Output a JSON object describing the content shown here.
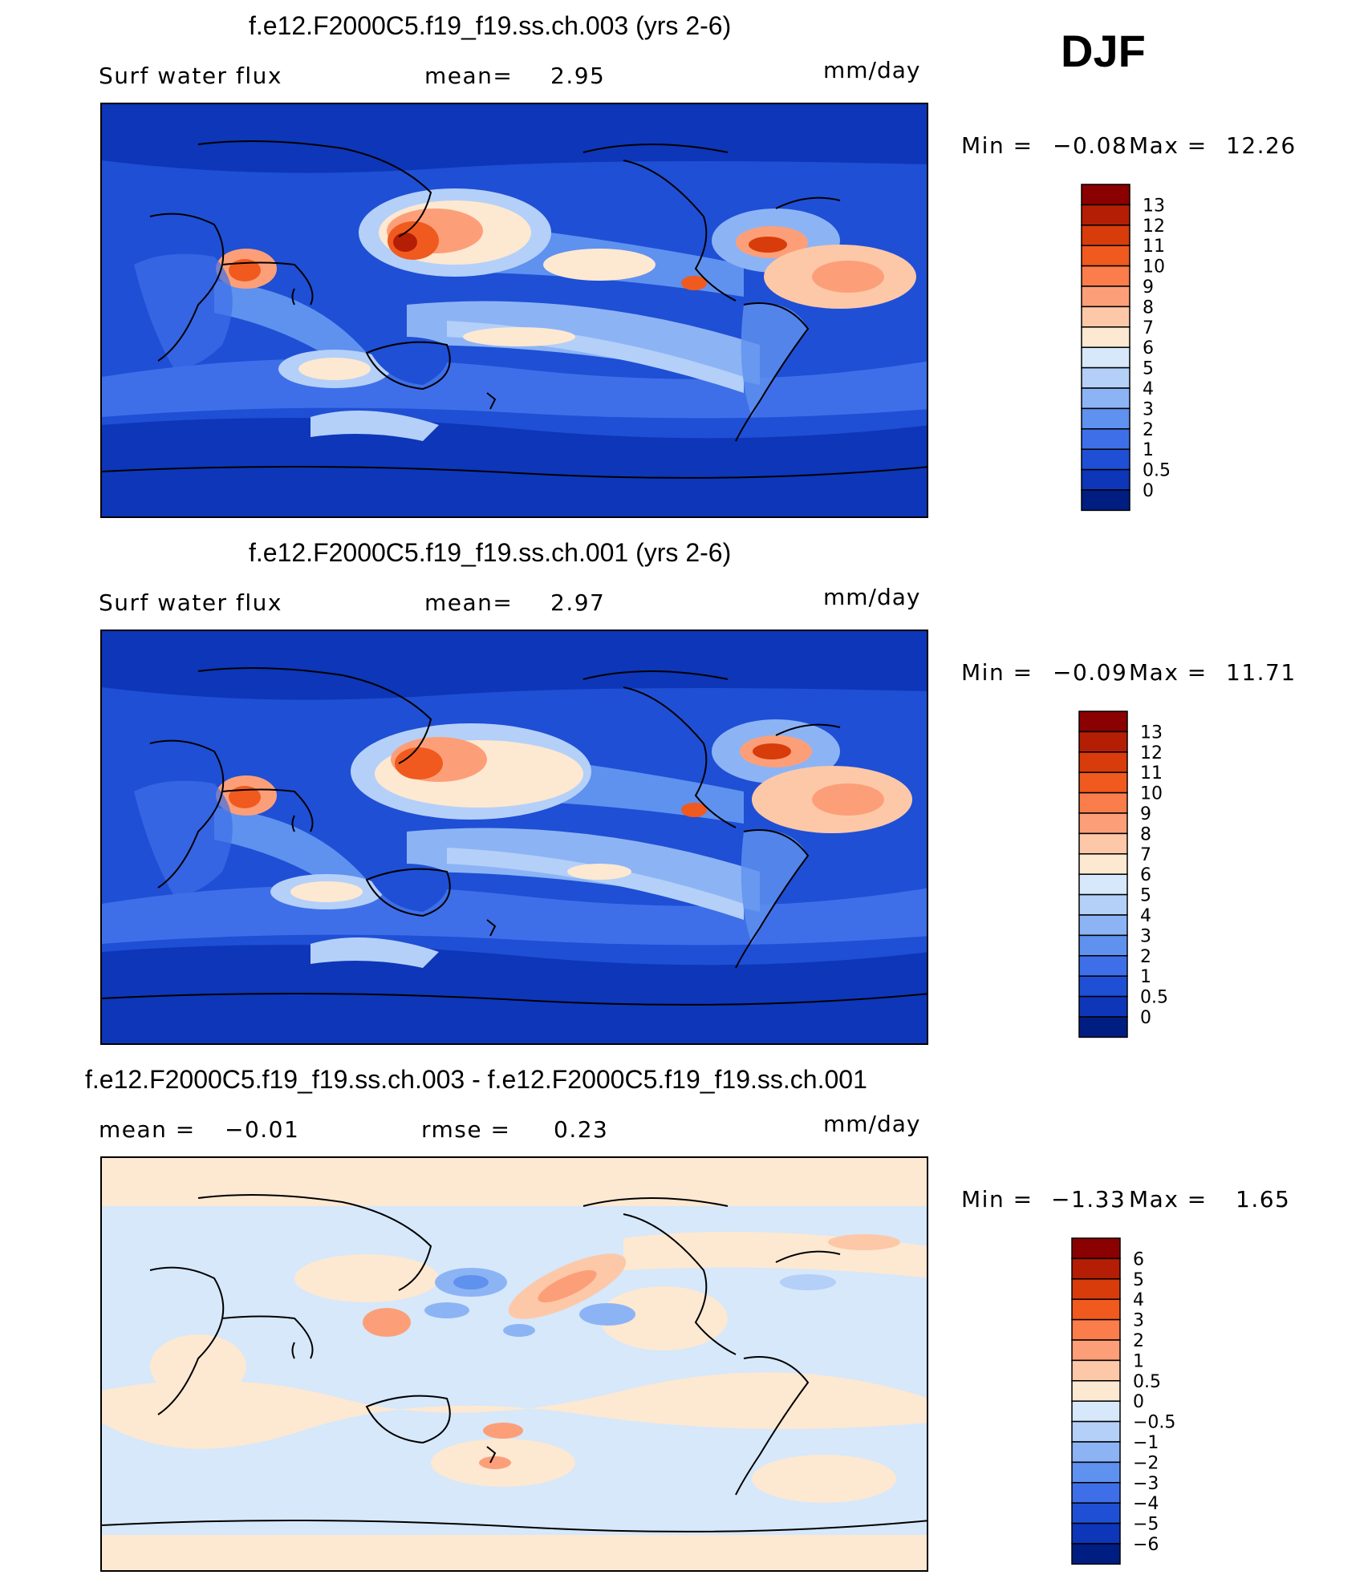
{
  "season": "DJF",
  "units": "mm/day",
  "panels": [
    {
      "title": "f.e12.F2000C5.f19_f19.ss.ch.003 (yrs 2-6)",
      "left_label": "Surf water flux",
      "stat_label": "mean=",
      "stat_value": "2.95",
      "min_label": "Min =",
      "min_value": "−0.08",
      "max_label": "Max =",
      "max_value": "12.26"
    },
    {
      "title": "f.e12.F2000C5.f19_f19.ss.ch.001 (yrs 2-6)",
      "left_label": "Surf water flux",
      "stat_label": "mean=",
      "stat_value": "2.97",
      "min_label": "Min =",
      "min_value": "−0.09",
      "max_label": "Max =",
      "max_value": "11.71"
    },
    {
      "title": "f.e12.F2000C5.f19_f19.ss.ch.003 - f.e12.F2000C5.f19_f19.ss.ch.001",
      "left_label": "mean =",
      "left_value": "−0.01",
      "stat_label": "rmse =",
      "stat_value": "0.23",
      "min_label": "Min =",
      "min_value": "−1.33",
      "max_label": "Max =",
      "max_value": "1.65"
    }
  ],
  "colorbars": {
    "abs_labels": [
      "13",
      "12",
      "11",
      "10",
      "9",
      "8",
      "7",
      "6",
      "5",
      "4",
      "3",
      "2",
      "1",
      "0.5",
      "0"
    ],
    "abs_colors": [
      "#8b0000",
      "#b41e05",
      "#d73c0a",
      "#f05a1e",
      "#fa7d4b",
      "#fc9f78",
      "#fdc8a8",
      "#fde8d2",
      "#d6e8fa",
      "#b4d0f8",
      "#8cb4f5",
      "#5f91ef",
      "#3f6fe8",
      "#1f4fd5",
      "#0d36b8",
      "#001e82"
    ],
    "diff_labels": [
      "6",
      "5",
      "4",
      "3",
      "2",
      "1",
      "0.5",
      "0",
      "−0.5",
      "−1",
      "−2",
      "−3",
      "−4",
      "−5",
      "−6"
    ],
    "diff_colors": [
      "#8b0000",
      "#b41e05",
      "#d73c0a",
      "#f05a1e",
      "#fa7d4b",
      "#fc9f78",
      "#fdc8a8",
      "#fde8d2",
      "#d6e8fa",
      "#b4d0f8",
      "#8cb4f5",
      "#5f91ef",
      "#3f6fe8",
      "#1f4fd5",
      "#0d36b8",
      "#001e82"
    ]
  },
  "chart_data": [
    {
      "type": "heatmap",
      "title": "f.e12.F2000C5.f19_f19.ss.ch.003 (yrs 2-6)",
      "variable": "Surf water flux",
      "season": "DJF",
      "units": "mm/day",
      "mean": 2.95,
      "min": -0.08,
      "max": 12.26,
      "contour_levels": [
        0,
        0.5,
        1,
        2,
        3,
        4,
        5,
        6,
        7,
        8,
        9,
        10,
        11,
        12,
        13
      ],
      "map": "global, Pacific-centered"
    },
    {
      "type": "heatmap",
      "title": "f.e12.F2000C5.f19_f19.ss.ch.001 (yrs 2-6)",
      "variable": "Surf water flux",
      "season": "DJF",
      "units": "mm/day",
      "mean": 2.97,
      "min": -0.09,
      "max": 11.71,
      "contour_levels": [
        0,
        0.5,
        1,
        2,
        3,
        4,
        5,
        6,
        7,
        8,
        9,
        10,
        11,
        12,
        13
      ],
      "map": "global, Pacific-centered"
    },
    {
      "type": "heatmap",
      "title": "f.e12.F2000C5.f19_f19.ss.ch.003 - f.e12.F2000C5.f19_f19.ss.ch.001",
      "season": "DJF",
      "units": "mm/day",
      "mean": -0.01,
      "rmse": 0.23,
      "min": -1.33,
      "max": 1.65,
      "contour_levels": [
        -6,
        -5,
        -4,
        -3,
        -2,
        -1,
        -0.5,
        0,
        0.5,
        1,
        2,
        3,
        4,
        5,
        6
      ],
      "map": "global, Pacific-centered"
    }
  ]
}
